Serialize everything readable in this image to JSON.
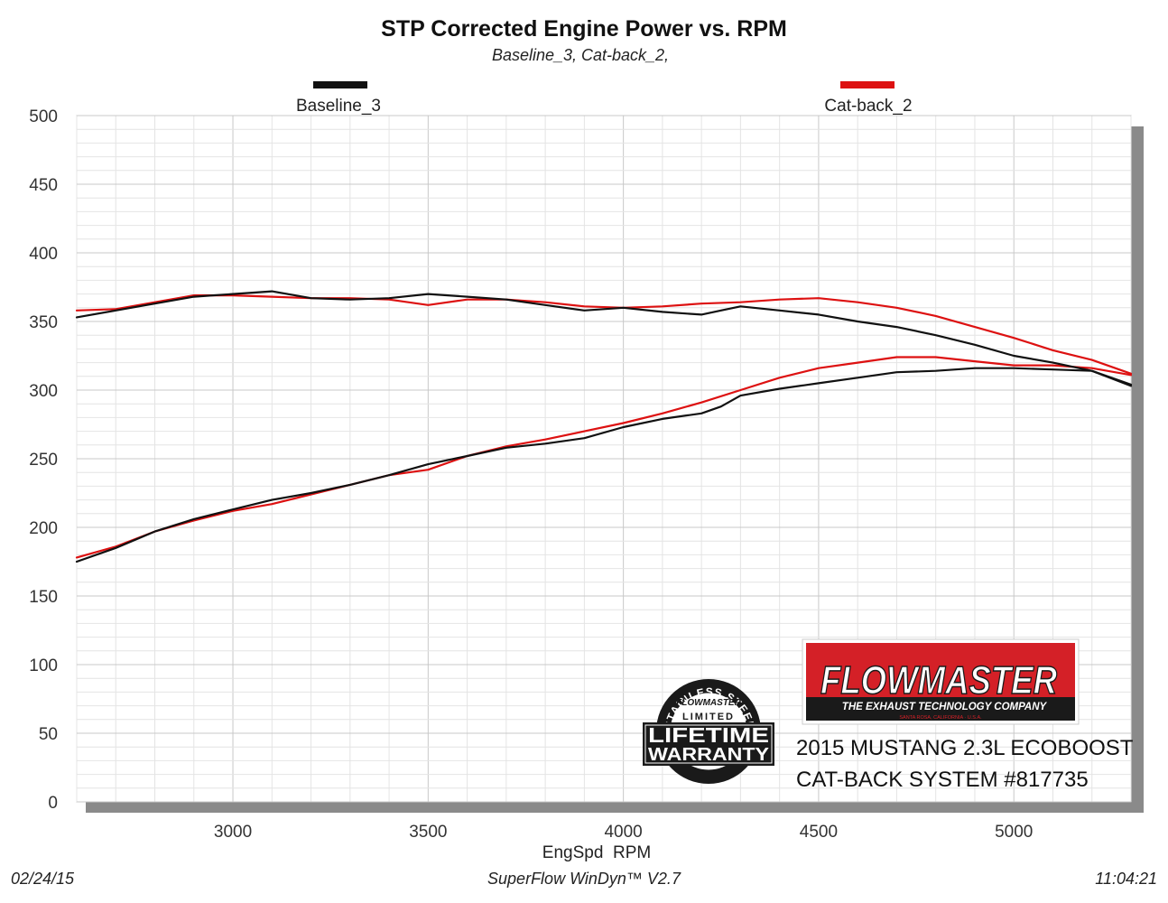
{
  "chart_data": {
    "type": "line",
    "title": "STP Corrected Engine Power vs. RPM",
    "subtitle": "Baseline_3, Cat-back_2,",
    "xlabel": "EngSpd  RPM",
    "ylabel": "",
    "xlim": [
      2600,
      5300
    ],
    "ylim": [
      0,
      500
    ],
    "x_ticks": [
      3000,
      3500,
      4000,
      4500,
      5000
    ],
    "y_ticks": [
      0,
      50,
      100,
      150,
      200,
      250,
      300,
      350,
      400,
      450,
      500
    ],
    "grid": true,
    "legend_position": "top",
    "series": [
      {
        "name": "Baseline_3",
        "color": "#111111",
        "x": [
          2600,
          2700,
          2800,
          2900,
          3000,
          3100,
          3200,
          3300,
          3400,
          3500,
          3600,
          3700,
          3800,
          3900,
          4000,
          4100,
          4200,
          4250,
          4300,
          4400,
          4500,
          4600,
          4700,
          4800,
          4900,
          5000,
          5100,
          5200,
          5300
        ],
        "torque": [
          353,
          358,
          363,
          368,
          370,
          372,
          367,
          366,
          367,
          370,
          368,
          366,
          362,
          358,
          360,
          357,
          355,
          358,
          361,
          358,
          355,
          350,
          346,
          340,
          333,
          325,
          320,
          314,
          304
        ],
        "power": [
          175,
          185,
          197,
          206,
          213,
          220,
          225,
          231,
          238,
          246,
          252,
          258,
          261,
          265,
          273,
          279,
          283,
          288,
          296,
          301,
          305,
          309,
          313,
          314,
          316,
          316,
          315,
          314,
          303
        ]
      },
      {
        "name": "Cat-back_2",
        "color": "#dd1111",
        "x": [
          2600,
          2700,
          2800,
          2900,
          3000,
          3100,
          3200,
          3300,
          3400,
          3500,
          3600,
          3700,
          3800,
          3900,
          4000,
          4100,
          4200,
          4300,
          4400,
          4500,
          4600,
          4700,
          4800,
          4900,
          5000,
          5100,
          5200,
          5300
        ],
        "torque": [
          358,
          359,
          364,
          369,
          369,
          368,
          367,
          367,
          366,
          362,
          366,
          366,
          364,
          361,
          360,
          361,
          363,
          364,
          366,
          367,
          364,
          360,
          354,
          346,
          338,
          329,
          322,
          312
        ],
        "power": [
          178,
          186,
          197,
          205,
          212,
          217,
          224,
          231,
          238,
          242,
          252,
          259,
          264,
          270,
          276,
          283,
          291,
          300,
          309,
          316,
          320,
          324,
          324,
          321,
          318,
          318,
          316,
          311
        ]
      }
    ]
  },
  "footer": {
    "date": "02/24/15",
    "software": "SuperFlow WinDyn™ V2.7",
    "time": "11:04:21"
  },
  "branding": {
    "logo_text": "FLOWMASTER",
    "logo_tagline": "THE EXHAUST TECHNOLOGY COMPANY",
    "logo_small": "SANTA ROSA, CALIFORNIA · U.S.A.",
    "warranty_top": "STAINLESS STEEL",
    "warranty_brand": "FLOWMASTER",
    "warranty_limited": "LIMITED",
    "warranty_line1": "LIFETIME",
    "warranty_line2": "WARRANTY",
    "caption_line1": "2015 MUSTANG 2.3L ECOBOOST",
    "caption_line2": "CAT-BACK SYSTEM #817735"
  },
  "colors": {
    "logo_red": "#d42027",
    "logo_dark": "#1a1a1a"
  }
}
